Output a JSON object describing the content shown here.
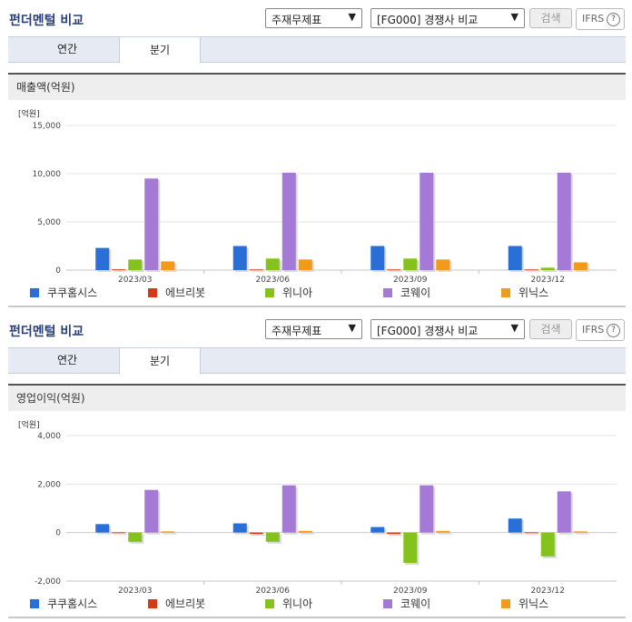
{
  "panels": [
    {
      "title": "펀더멘털 비교",
      "statement_select": "주재무제표",
      "group_select": "[FG000] 경쟁사 비교",
      "search_button": "검색",
      "ifrs_label": "IFRS",
      "help_glyph": "?",
      "tabs": [
        {
          "label": "연간",
          "active": false
        },
        {
          "label": "분기",
          "active": true
        }
      ],
      "metric_label": "매출액(억원)",
      "unit_label": "[억원]",
      "legend": [
        {
          "name": "쿠쿠홈시스",
          "color": "#2a6fd8"
        },
        {
          "name": "에브리봇",
          "color": "#d23b15"
        },
        {
          "name": "위니아",
          "color": "#86c21e"
        },
        {
          "name": "코웨이",
          "color": "#a47ad6"
        },
        {
          "name": "위닉스",
          "color": "#f29a1c"
        }
      ]
    },
    {
      "title": "펀더멘털 비교",
      "statement_select": "주재무제표",
      "group_select": "[FG000] 경쟁사 비교",
      "search_button": "검색",
      "ifrs_label": "IFRS",
      "help_glyph": "?",
      "tabs": [
        {
          "label": "연간",
          "active": false
        },
        {
          "label": "분기",
          "active": true
        }
      ],
      "metric_label": "영업이익(억원)",
      "unit_label": "[억원]",
      "legend": [
        {
          "name": "쿠쿠홈시스",
          "color": "#2a6fd8"
        },
        {
          "name": "에브리봇",
          "color": "#d23b15"
        },
        {
          "name": "위니아",
          "color": "#86c21e"
        },
        {
          "name": "코웨이",
          "color": "#a47ad6"
        },
        {
          "name": "위닉스",
          "color": "#f29a1c"
        }
      ]
    }
  ],
  "chart_data": [
    {
      "type": "bar",
      "ylabel": "[억원]",
      "categories": [
        "2023/03",
        "2023/06",
        "2023/09",
        "2023/12"
      ],
      "ylim": [
        0,
        15000
      ],
      "yticks": [
        0,
        5000,
        10000,
        15000
      ],
      "ytick_labels": [
        "0",
        "5,000",
        "10,000",
        "15,000"
      ],
      "series": [
        {
          "name": "쿠쿠홈시스",
          "color": "#2a6fd8",
          "values": [
            2300,
            2500,
            2500,
            2500
          ]
        },
        {
          "name": "에브리봇",
          "color": "#d23b15",
          "values": [
            80,
            70,
            70,
            70
          ]
        },
        {
          "name": "위니아",
          "color": "#86c21e",
          "values": [
            1100,
            1200,
            1200,
            250
          ]
        },
        {
          "name": "코웨이",
          "color": "#a47ad6",
          "values": [
            9500,
            10100,
            10100,
            10100
          ]
        },
        {
          "name": "위닉스",
          "color": "#f29a1c",
          "values": [
            900,
            1100,
            1100,
            800
          ]
        }
      ]
    },
    {
      "type": "bar",
      "ylabel": "[억원]",
      "categories": [
        "2023/03",
        "2023/06",
        "2023/09",
        "2023/12"
      ],
      "ylim": [
        -2000,
        4000
      ],
      "yticks": [
        -2000,
        0,
        2000,
        4000
      ],
      "ytick_labels": [
        "-2,000",
        "0",
        "2,000",
        "4,000"
      ],
      "series": [
        {
          "name": "쿠쿠홈시스",
          "color": "#2a6fd8",
          "values": [
            350,
            380,
            230,
            580
          ]
        },
        {
          "name": "에브리봇",
          "color": "#d23b15",
          "values": [
            10,
            -60,
            -60,
            10
          ]
        },
        {
          "name": "위니아",
          "color": "#86c21e",
          "values": [
            -380,
            -380,
            -1250,
            -980
          ]
        },
        {
          "name": "코웨이",
          "color": "#a47ad6",
          "values": [
            1760,
            1950,
            1950,
            1700
          ]
        },
        {
          "name": "위닉스",
          "color": "#f29a1c",
          "values": [
            50,
            70,
            70,
            50
          ]
        }
      ]
    }
  ]
}
